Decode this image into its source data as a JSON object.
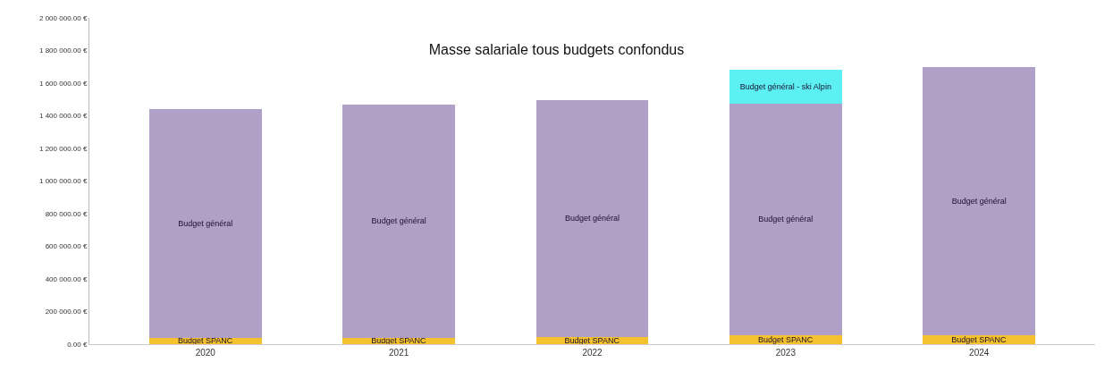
{
  "chart_data": {
    "type": "bar",
    "title": "Masse salariale tous budgets confondus",
    "stacked": true,
    "categories": [
      "2020",
      "2021",
      "2022",
      "2023",
      "2024"
    ],
    "series": [
      {
        "name": "Budget SPANC",
        "color": "#f5c12e",
        "values": [
          40000,
          40000,
          45000,
          55000,
          55000
        ]
      },
      {
        "name": "Budget général",
        "color": "#b09fc6",
        "values": [
          1400000,
          1430000,
          1450000,
          1420000,
          1645000
        ]
      },
      {
        "name": "Budget général - ski Alpin",
        "color": "#5cf0f2",
        "values": [
          null,
          null,
          null,
          207000,
          null
        ]
      }
    ],
    "ylim": [
      0,
      2000000
    ],
    "yticks": [
      {
        "value": 0,
        "label": "0.00 €"
      },
      {
        "value": 200000,
        "label": "200 000.00 €"
      },
      {
        "value": 400000,
        "label": "400 000.00 €"
      },
      {
        "value": 600000,
        "label": "600 000.00 €"
      },
      {
        "value": 800000,
        "label": "800 000.00 €"
      },
      {
        "value": 1000000,
        "label": "1 000 000.00 €"
      },
      {
        "value": 1200000,
        "label": "1 200 000.00 €"
      },
      {
        "value": 1400000,
        "label": "1 400 000.00 €"
      },
      {
        "value": 1600000,
        "label": "1 600 000.00 €"
      },
      {
        "value": 1800000,
        "label": "1 800 000.00 €"
      },
      {
        "value": 2000000,
        "label": "2 000 000.00 €"
      }
    ],
    "grid": false,
    "legend": false
  }
}
